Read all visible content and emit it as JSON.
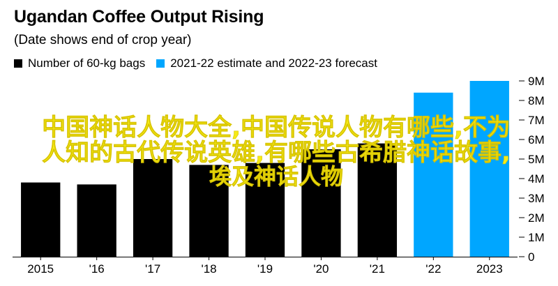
{
  "colors": {
    "actual": "#000000",
    "forecast": "#00a6ff",
    "axis": "#000000",
    "overlay_text": "#f5ea17"
  },
  "chart_data": {
    "type": "bar",
    "title": "Ugandan Coffee Output Rising",
    "subtitle": "(Date shows end of crop year)",
    "categories": [
      "2015",
      "'16",
      "'17",
      "'18",
      "'19",
      "'20",
      "'21",
      "'22",
      "2023"
    ],
    "series": [
      {
        "name": "Number of 60-kg bags",
        "values": [
          3.8,
          3.7,
          5.0,
          4.7,
          4.8,
          5.5,
          5.8,
          null,
          null
        ],
        "color": "#000000"
      },
      {
        "name": "2021-22 estimate and 2022-23 forecast",
        "values": [
          null,
          null,
          null,
          null,
          null,
          null,
          null,
          8.4,
          9.0
        ],
        "color": "#00a6ff"
      }
    ],
    "y_ticks": [
      "0",
      "1M",
      "2M",
      "3M",
      "4M",
      "5M",
      "6M",
      "7M",
      "8M",
      "9M"
    ],
    "ylim": [
      0,
      9.5
    ],
    "y_unit": "millions",
    "y_axis_side": "right",
    "grid": false,
    "legend_position": "top-left"
  },
  "overlay": {
    "line1": "中国神话人物大全,中国传说人物有哪些,不为",
    "line2": "人知的古代传说英雄,有哪些古希腊神话故事,",
    "line3": "埃及神话人物"
  }
}
